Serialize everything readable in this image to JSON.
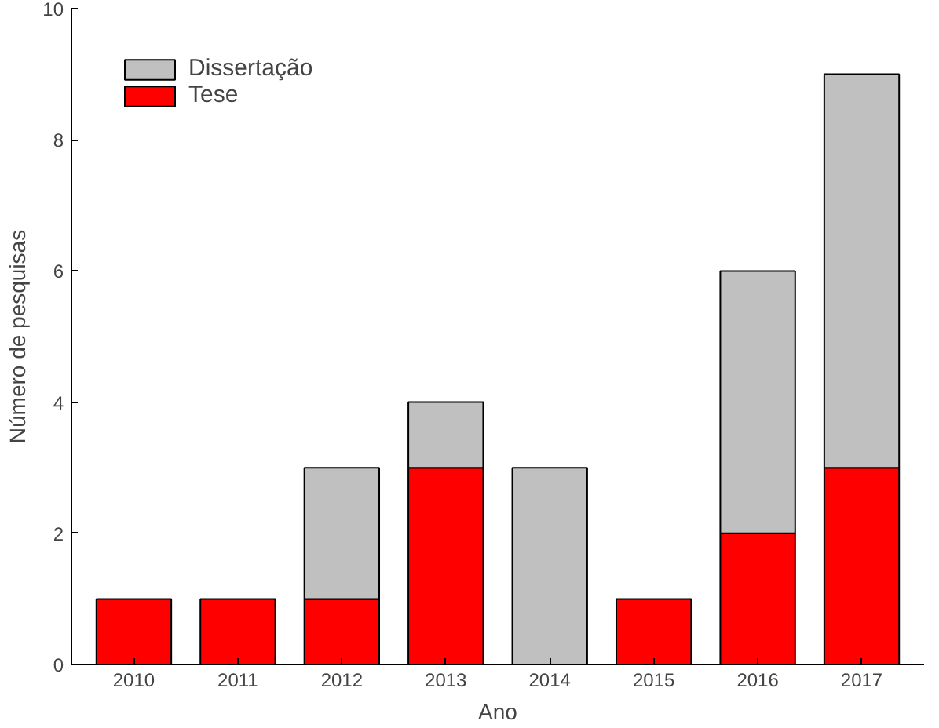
{
  "chart_data": {
    "type": "bar",
    "stacked": true,
    "xlabel": "Ano",
    "ylabel": "Número de pesquisas",
    "categories": [
      "2010",
      "2011",
      "2012",
      "2013",
      "2014",
      "2015",
      "2016",
      "2017"
    ],
    "series": [
      {
        "name": "Tese",
        "color": "#ff0000",
        "values": [
          1,
          1,
          1,
          3,
          0,
          1,
          2,
          3
        ]
      },
      {
        "name": "Dissertação",
        "color": "#c0c0c0",
        "values": [
          0,
          0,
          2,
          1,
          3,
          0,
          4,
          6
        ]
      }
    ],
    "ylim": [
      0,
      10
    ],
    "yticks": [
      0,
      2,
      4,
      6,
      8,
      10
    ],
    "grid": false,
    "legend": "top left"
  }
}
